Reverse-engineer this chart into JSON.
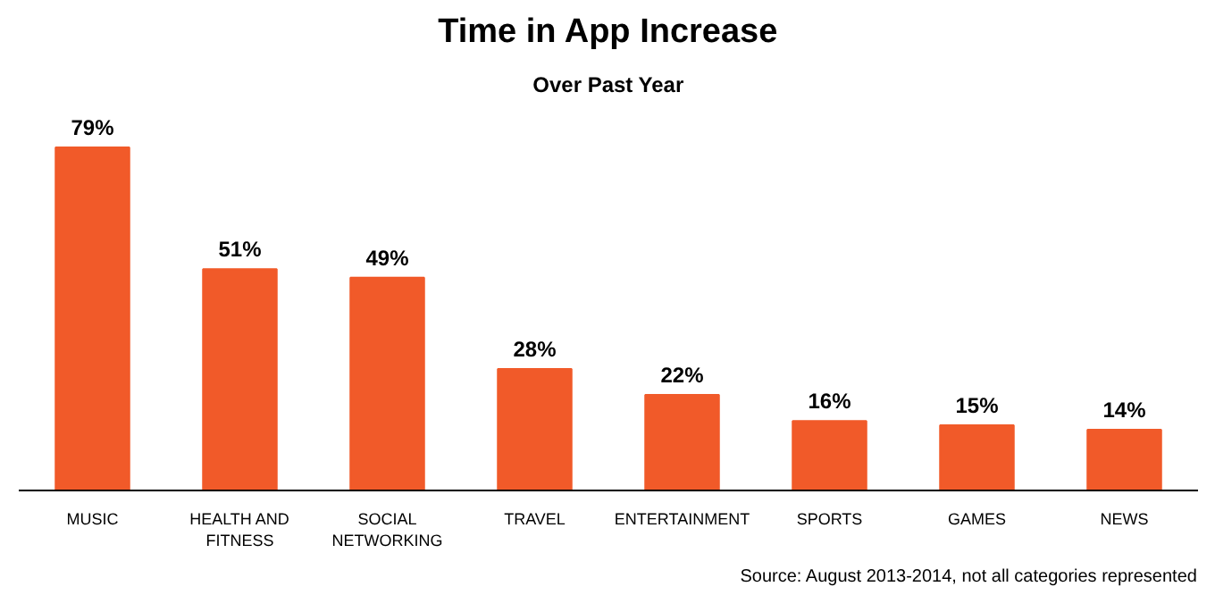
{
  "chart_data": {
    "type": "bar",
    "title": "Time in App Increase",
    "subtitle": "Over Past Year",
    "categories": [
      "MUSIC",
      "HEALTH AND FITNESS",
      "SOCIAL NETWORKING",
      "TRAVEL",
      "ENTERTAINMENT",
      "SPORTS",
      "GAMES",
      "NEWS"
    ],
    "values": [
      79,
      51,
      49,
      28,
      22,
      16,
      15,
      14
    ],
    "value_labels": [
      "79%",
      "51%",
      "49%",
      "28%",
      "22%",
      "16%",
      "15%",
      "14%"
    ],
    "color": "#f15a29",
    "grid": false,
    "annotations": [
      "Source: August 2013-2014, not all categories represented"
    ]
  }
}
